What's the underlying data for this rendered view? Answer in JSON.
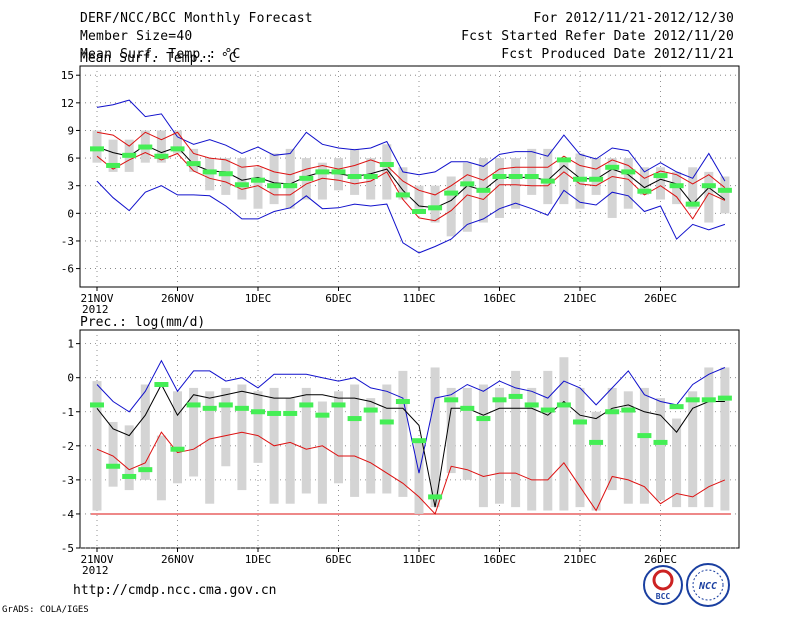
{
  "header": {
    "title": "DERF/NCC/BCC Monthly Forecast",
    "member_size": "Member Size=40",
    "variable": "Mean Surf. Temp.: °C",
    "period": "For 2012/11/21-2012/12/30",
    "started": "Fcst Started Refer Date 2012/11/20",
    "produced": "Fcst Produced Date 2012/11/21"
  },
  "footer": {
    "url": "http://cmdp.ncc.cma.gov.cn",
    "grads": "GrADS: COLA/IGES",
    "logo_bcc": "BCC",
    "logo_ncc": "NCC"
  },
  "colors": {
    "grey": "#d4d4d4",
    "green": "#44ee55",
    "red": "#dd1111",
    "blue": "#1111cc",
    "black": "#000000"
  },
  "chart_data": [
    {
      "type": "ensemble-box-line",
      "title": "Mean Surf. Temp.: °C",
      "x_ticks": [
        "21NOV",
        "26NOV",
        "1DEC",
        "6DEC",
        "11DEC",
        "16DEC",
        "21DEC",
        "26DEC"
      ],
      "x_year": "2012",
      "ylim": [
        -8,
        16
      ],
      "y_ticks": [
        -6,
        -3,
        0,
        3,
        6,
        9,
        12,
        15
      ],
      "days": 40,
      "bar_low": [
        5.5,
        4.5,
        4.5,
        5.5,
        5.5,
        6.5,
        4.5,
        2.5,
        2,
        1.5,
        0.5,
        1,
        0.5,
        1.5,
        1.5,
        2.5,
        2,
        1.5,
        1.5,
        1.5,
        0.5,
        -1,
        -2.5,
        -2,
        -1,
        -0.5,
        0.5,
        2,
        1,
        1,
        0.5,
        2,
        -0.5,
        0.5,
        2,
        1.5,
        1,
        0.5,
        -1,
        0
      ],
      "bar_high": [
        9,
        8,
        8,
        9,
        9,
        9,
        7,
        6,
        6,
        6,
        5,
        6.5,
        7,
        6,
        5.5,
        6,
        7,
        6,
        7.5,
        5,
        3,
        3,
        4,
        5.5,
        6,
        6,
        6,
        7,
        7,
        5.5,
        6.5,
        6,
        6,
        6,
        5,
        5,
        4.5,
        5,
        4.5,
        4
      ],
      "green_median": [
        7,
        5.2,
        6.3,
        7.2,
        6.2,
        7,
        5.4,
        4.5,
        4.3,
        3.1,
        3.6,
        3,
        3,
        3.8,
        4.5,
        4.5,
        4,
        4,
        5.3,
        2,
        0.2,
        0.6,
        2.2,
        3.2,
        2.5,
        4,
        4,
        4,
        3.5,
        5.8,
        3.7,
        3.7,
        5,
        4.5,
        2.4,
        4.1,
        3,
        1,
        3,
        2.5
      ],
      "red_upper": [
        8.8,
        8.5,
        7.3,
        8.8,
        8,
        8.8,
        6.5,
        6,
        5.8,
        5,
        5.2,
        4.5,
        4.2,
        4.8,
        5.2,
        4.8,
        5.2,
        5.8,
        5.2,
        3.5,
        2.5,
        2,
        3,
        4.2,
        3.6,
        4.8,
        5,
        5,
        5,
        6.2,
        5.2,
        4.8,
        5.8,
        5.2,
        3.8,
        4.6,
        4.2,
        3.2,
        4.2,
        2.8
      ],
      "black_mean": [
        7.2,
        6.6,
        6.2,
        7.4,
        6.6,
        7.2,
        5.3,
        4.6,
        4.5,
        3.6,
        3.9,
        3.3,
        3.2,
        4,
        4.5,
        4.3,
        4,
        4.3,
        4.8,
        2.5,
        0.8,
        0.6,
        1.4,
        3,
        2.5,
        3.9,
        3.9,
        3.9,
        3.6,
        5.2,
        3.8,
        3.7,
        4.8,
        4.2,
        2.8,
        3.7,
        3.2,
        1,
        2.8,
        1.5
      ],
      "red_lower": [
        6.2,
        4.8,
        5.8,
        6.6,
        5.8,
        6.5,
        4.6,
        3.8,
        3.4,
        2.6,
        3,
        2,
        2,
        3.2,
        3.8,
        3.6,
        3.2,
        3.5,
        4.5,
        1.5,
        -0.5,
        -0.8,
        0.3,
        2,
        1.5,
        3.1,
        3.1,
        3,
        3,
        4.5,
        3.2,
        3,
        4,
        3.7,
        2,
        3,
        1.8,
        -0.6,
        2.2,
        1.4
      ],
      "blue_upper": [
        11.5,
        11.8,
        12.3,
        10.5,
        10.8,
        8.3,
        7.5,
        8,
        7.4,
        6.5,
        7.2,
        6.3,
        6.5,
        8.8,
        7.5,
        7.1,
        6.9,
        7.1,
        7.8,
        4.5,
        4.2,
        4.5,
        5.6,
        5.6,
        5.1,
        6.4,
        6.7,
        6.7,
        6.2,
        8.5,
        6.4,
        5.9,
        7.1,
        6.8,
        4.5,
        5.5,
        4.5,
        3.8,
        6.5,
        3.5
      ],
      "blue_lower": [
        3.5,
        1.7,
        0.3,
        2.3,
        3,
        2,
        2,
        1.9,
        0.8,
        -0.6,
        -0.6,
        0.2,
        0.6,
        1.9,
        0.5,
        0.6,
        1,
        0.8,
        1,
        -3.2,
        -4.3,
        -3.6,
        -2.8,
        -1.2,
        -0.6,
        0.5,
        1.1,
        0.5,
        -0.2,
        2.5,
        1.2,
        0.9,
        2.3,
        1.9,
        0.2,
        0.8,
        -2.8,
        -1.2,
        -1.8,
        -1.2
      ]
    },
    {
      "type": "ensemble-box-line",
      "title": "Prec.: log(mm/d)",
      "x_ticks": [
        "21NOV",
        "26NOV",
        "1DEC",
        "6DEC",
        "11DEC",
        "16DEC",
        "21DEC",
        "26DEC"
      ],
      "x_year": "2012",
      "ylim": [
        -5,
        1.4
      ],
      "y_ticks": [
        -5,
        -4,
        -3,
        -2,
        -1,
        0,
        1
      ],
      "days": 40,
      "floor": -4,
      "bar_low": [
        -3.9,
        -3.2,
        -3.3,
        -3,
        -3.6,
        -3.1,
        -2.9,
        -3.7,
        -2.6,
        -3.3,
        -2.5,
        -3.7,
        -3.7,
        -3.4,
        -3.7,
        -3.1,
        -3.5,
        -3.4,
        -3.4,
        -3.5,
        -4,
        -3.8,
        -2.8,
        -3,
        -3.8,
        -3.7,
        -3.8,
        -3.9,
        -3.9,
        -3.9,
        -3.8,
        -3.9,
        -3.3,
        -3.7,
        -3.7,
        -3.6,
        -3.8,
        -3.8,
        -3.8,
        -3.9
      ],
      "bar_high": [
        -0.1,
        -1.3,
        -1.4,
        -0.2,
        -1.7,
        -0.4,
        -0.3,
        -0.4,
        -0.3,
        -0.2,
        -0.4,
        -0.3,
        -0.6,
        -0.3,
        -0.7,
        -0.4,
        -0.2,
        -0.6,
        -0.2,
        0.2,
        -1.8,
        0.3,
        -0.3,
        -0.3,
        -0.2,
        -0.3,
        0.2,
        -0.3,
        0.2,
        0.6,
        -0.3,
        -1,
        -0.3,
        -0.4,
        -0.3,
        -0.6,
        -1.2,
        -0.4,
        0.3,
        0.3
      ],
      "green_median": [
        -0.8,
        -2.6,
        -2.9,
        -2.7,
        -0.2,
        -2.1,
        -0.8,
        -0.9,
        -0.8,
        -0.9,
        -1,
        -1.05,
        -1.05,
        -0.8,
        -1.1,
        -0.8,
        -1.2,
        -0.95,
        -1.3,
        -0.7,
        -1.85,
        -3.5,
        -0.65,
        -0.9,
        -1.2,
        -0.65,
        -0.55,
        -0.8,
        -0.95,
        -0.8,
        -1.3,
        -1.9,
        -1,
        -0.95,
        -1.7,
        -1.9,
        -0.85,
        -0.65,
        -0.65,
        -0.6
      ],
      "black_mean": [
        -0.9,
        -1.5,
        -1.7,
        -1.1,
        -0.2,
        -1.1,
        -0.5,
        -0.6,
        -0.5,
        -0.4,
        -0.5,
        -0.6,
        -0.6,
        -0.5,
        -0.5,
        -0.6,
        -0.6,
        -0.7,
        -0.9,
        -0.9,
        -1.4,
        -3.8,
        -0.9,
        -0.9,
        -1.1,
        -0.9,
        -0.9,
        -0.9,
        -1.1,
        -0.7,
        -1.1,
        -1.2,
        -0.9,
        -0.8,
        -1,
        -1.1,
        -1.6,
        -0.9,
        -0.7,
        -0.7
      ],
      "red_lower": [
        -2.1,
        -2.3,
        -2.7,
        -2.5,
        -1.6,
        -2.2,
        -2.1,
        -1.8,
        -1.7,
        -1.6,
        -1.7,
        -2,
        -1.9,
        -2.1,
        -2,
        -2.3,
        -2.3,
        -2.5,
        -2.8,
        -3.1,
        -3.5,
        -4,
        -2.6,
        -2.7,
        -2.9,
        -2.8,
        -2.8,
        -3,
        -3,
        -2.5,
        -3.2,
        -3.9,
        -2.9,
        -3,
        -3.2,
        -3.7,
        -3.4,
        -3.5,
        -3.2,
        -3
      ],
      "blue_upper": [
        -0.2,
        -0.7,
        -1,
        -0.4,
        0.5,
        -0.4,
        0.2,
        0.2,
        -0.1,
        0,
        -0.3,
        0.1,
        0.1,
        0.1,
        0,
        -0.1,
        0,
        -0.3,
        -0.4,
        -0.6,
        -2.8,
        -0.6,
        -0.5,
        -0.2,
        -0.4,
        -0.1,
        -0.3,
        -0.4,
        -0.6,
        -0.1,
        -0.3,
        -0.8,
        -0.3,
        0.2,
        -0.5,
        -0.7,
        -0.8,
        -0.2,
        0.1,
        0.3
      ]
    }
  ]
}
